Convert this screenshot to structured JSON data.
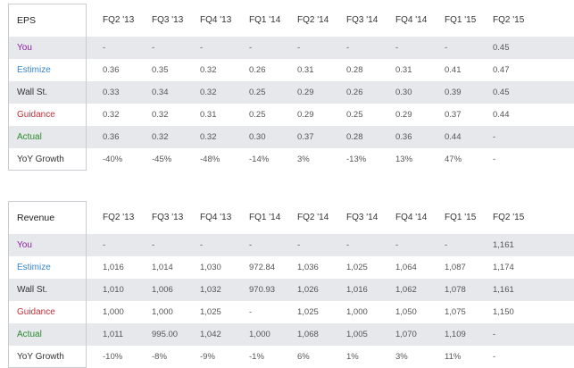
{
  "colors": {
    "you": "#8b1ea8",
    "estimize": "#3a86c8",
    "guidance": "#c0303a",
    "actual": "#2d8a2f",
    "neutral": "#333333",
    "shade": "#e6e8eb"
  },
  "eps": {
    "title": "EPS",
    "quarters": [
      "FQ2 '13",
      "FQ3 '13",
      "FQ4 '13",
      "FQ1 '14",
      "FQ2 '14",
      "FQ3 '14",
      "FQ4 '14",
      "FQ1 '15",
      "FQ2 '15"
    ],
    "rows": [
      {
        "label": "You",
        "values": [
          "-",
          "-",
          "-",
          "-",
          "-",
          "-",
          "-",
          "-",
          "0.45"
        ]
      },
      {
        "label": "Estimize",
        "values": [
          "0.36",
          "0.35",
          "0.32",
          "0.26",
          "0.31",
          "0.28",
          "0.31",
          "0.41",
          "0.47"
        ]
      },
      {
        "label": "Wall St.",
        "values": [
          "0.33",
          "0.34",
          "0.32",
          "0.25",
          "0.29",
          "0.26",
          "0.30",
          "0.39",
          "0.45"
        ]
      },
      {
        "label": "Guidance",
        "values": [
          "0.32",
          "0.32",
          "0.31",
          "0.25",
          "0.29",
          "0.25",
          "0.29",
          "0.37",
          "0.44"
        ]
      },
      {
        "label": "Actual",
        "values": [
          "0.36",
          "0.32",
          "0.32",
          "0.30",
          "0.37",
          "0.28",
          "0.36",
          "0.44",
          "-"
        ]
      },
      {
        "label": "YoY Growth",
        "values": [
          "-40%",
          "-45%",
          "-48%",
          "-14%",
          "3%",
          "-13%",
          "13%",
          "47%",
          "-"
        ]
      }
    ]
  },
  "revenue": {
    "title": "Revenue",
    "quarters": [
      "FQ2 '13",
      "FQ3 '13",
      "FQ4 '13",
      "FQ1 '14",
      "FQ2 '14",
      "FQ3 '14",
      "FQ4 '14",
      "FQ1 '15",
      "FQ2 '15"
    ],
    "rows": [
      {
        "label": "You",
        "values": [
          "-",
          "-",
          "-",
          "-",
          "-",
          "-",
          "-",
          "-",
          "1,161"
        ]
      },
      {
        "label": "Estimize",
        "values": [
          "1,016",
          "1,014",
          "1,030",
          "972.84",
          "1,036",
          "1,025",
          "1,064",
          "1,087",
          "1,174"
        ]
      },
      {
        "label": "Wall St.",
        "values": [
          "1,010",
          "1,006",
          "1,032",
          "970.93",
          "1,026",
          "1,016",
          "1,062",
          "1,078",
          "1,161"
        ]
      },
      {
        "label": "Guidance",
        "values": [
          "1,000",
          "1,000",
          "1,025",
          "-",
          "1,025",
          "1,000",
          "1,050",
          "1,075",
          "1,150"
        ]
      },
      {
        "label": "Actual",
        "values": [
          "1,011",
          "995.00",
          "1,042",
          "1,000",
          "1,068",
          "1,005",
          "1,070",
          "1,109",
          "-"
        ]
      },
      {
        "label": "YoY Growth",
        "values": [
          "-10%",
          "-8%",
          "-9%",
          "-1%",
          "6%",
          "1%",
          "3%",
          "11%",
          "-"
        ]
      }
    ]
  }
}
